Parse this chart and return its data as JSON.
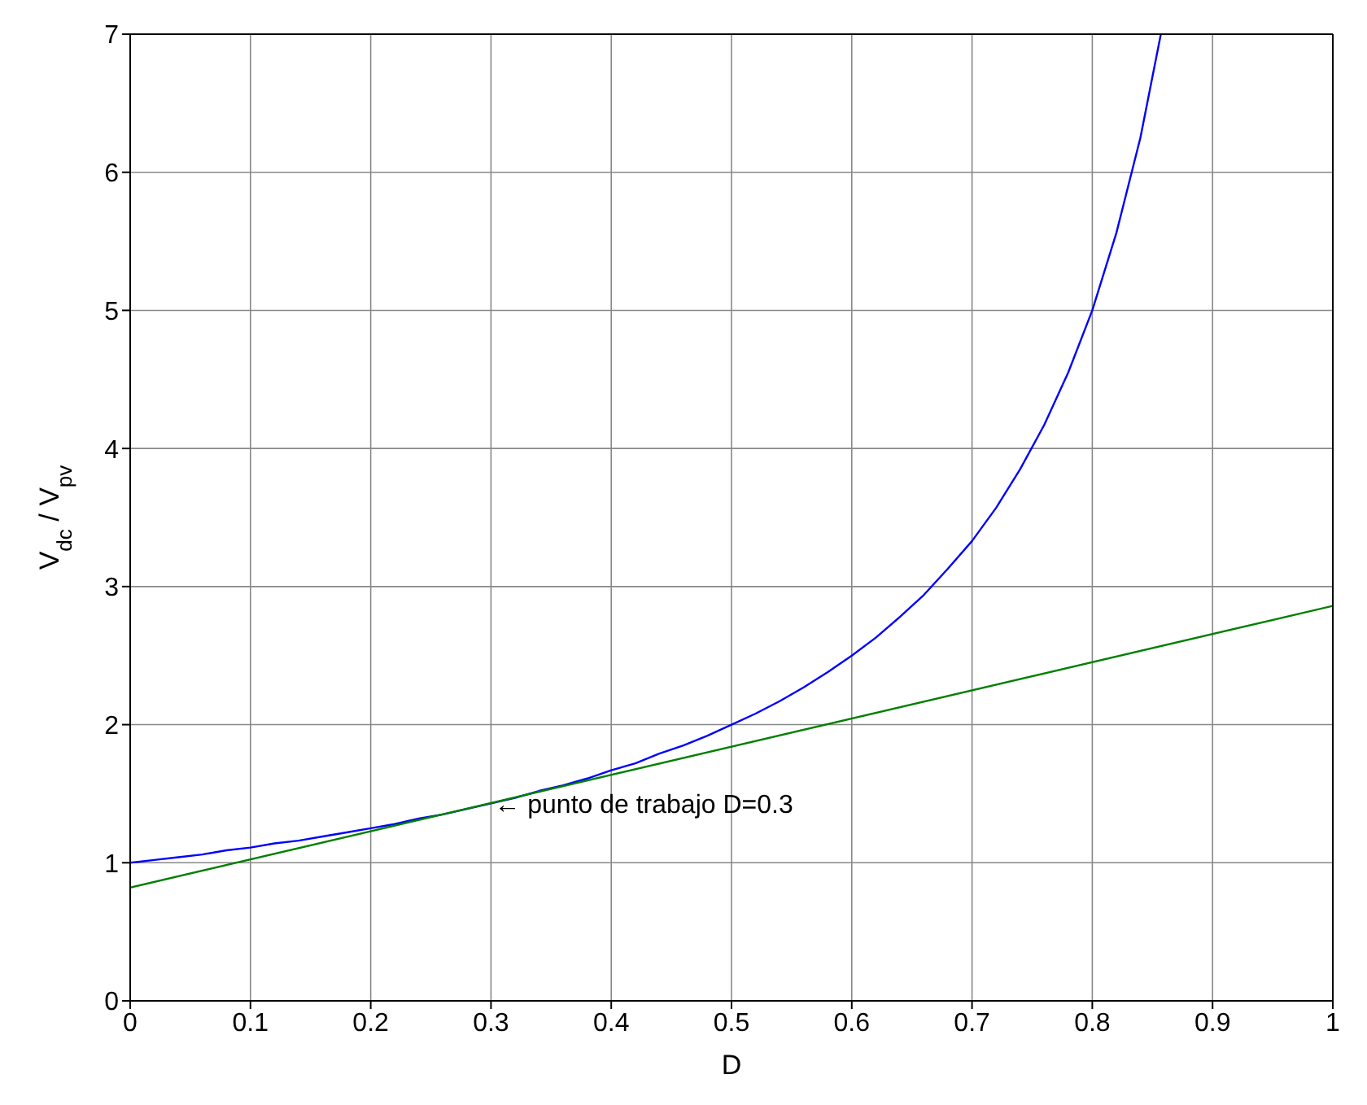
{
  "chart_data": {
    "type": "line",
    "xlabel": "D",
    "ylabel": "V$_{dc}$ / V$_{pv}$",
    "xlim": [
      0,
      1
    ],
    "xticks": [
      0,
      0.1,
      0.2,
      0.3,
      0.4,
      0.5,
      0.6,
      0.7,
      0.8,
      0.9,
      1
    ],
    "ylim": [
      0,
      7
    ],
    "yticks": [
      0,
      1,
      2,
      3,
      4,
      5,
      6,
      7
    ],
    "grid": true,
    "series": [
      {
        "color": "#0000ff",
        "x": [
          0,
          0.02,
          0.04,
          0.06,
          0.08,
          0.1,
          0.12,
          0.14,
          0.16,
          0.18,
          0.2,
          0.22,
          0.24,
          0.26,
          0.28,
          0.3,
          0.32,
          0.34,
          0.36,
          0.38,
          0.4,
          0.42,
          0.44,
          0.46,
          0.48,
          0.5,
          0.52,
          0.54,
          0.56,
          0.58,
          0.6,
          0.62,
          0.64,
          0.66,
          0.68,
          0.7,
          0.72,
          0.74,
          0.76,
          0.78,
          0.8,
          0.82,
          0.84,
          0.857
        ],
        "values": [
          1,
          1.02,
          1.04,
          1.06,
          1.09,
          1.11,
          1.14,
          1.16,
          1.19,
          1.22,
          1.25,
          1.28,
          1.32,
          1.35,
          1.39,
          1.43,
          1.47,
          1.52,
          1.56,
          1.61,
          1.67,
          1.72,
          1.79,
          1.85,
          1.92,
          2,
          2.08,
          2.17,
          2.27,
          2.38,
          2.5,
          2.63,
          2.78,
          2.94,
          3.13,
          3.33,
          3.57,
          3.85,
          4.17,
          4.55,
          5,
          5.56,
          6.25,
          7
        ]
      },
      {
        "color": "#008000",
        "x": [
          0,
          1
        ],
        "values": [
          0.82,
          2.86
        ]
      }
    ],
    "annotations": [
      {
        "text": "← punto de trabajo D=0.3",
        "x": 0.3,
        "y": 1.43
      }
    ]
  }
}
